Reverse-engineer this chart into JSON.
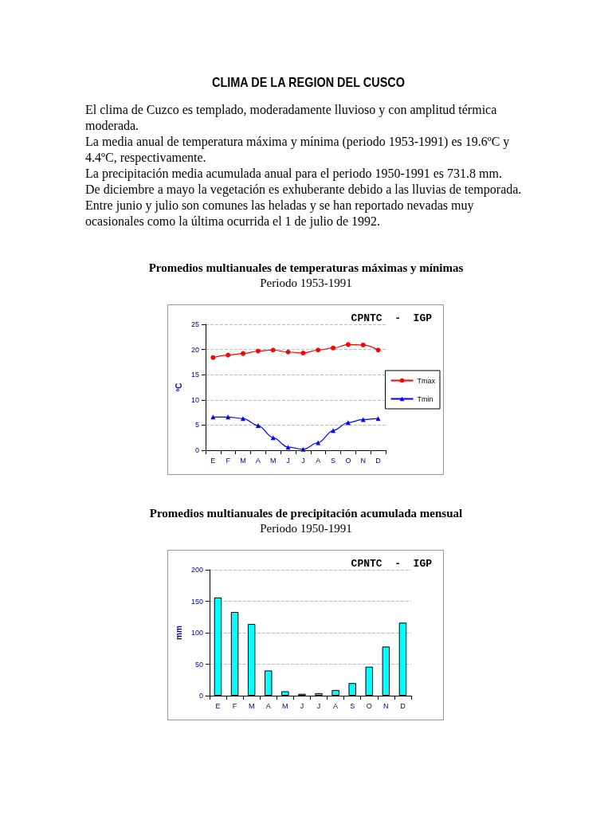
{
  "chart_data": [
    {
      "type": "other",
      "title": "CLIMA DE LA REGION DEL CUSCO",
      "annotations": [
        "El clima de Cuzco es templado, moderadamente lluvioso y con amplitud térmica moderada.",
        "La media anual de temperatura máxima y mínima (periodo 1953-1991) es 19.6ºC y 4.4ºC, respectivamente.",
        "La precipitación media acumulada anual para el periodo 1950-1991 es 731.8 mm.",
        "De diciembre a mayo la vegetación es exhuberante debido a las lluvias de temporada. Entre junio y julio son comunes las heladas y se han reportado nevadas muy ocasionales como la última ocurrida el 1 de julio de 1992."
      ]
    },
    {
      "type": "line",
      "title": "Promedios multianuales de temperaturas máximas y mínimas",
      "subtitle": "Periodo 1953-1991",
      "ylabel": "ºC",
      "annotations": [
        "CPNTC  -  IGP"
      ],
      "categories": [
        "E",
        "F",
        "M",
        "A",
        "M",
        "J",
        "J",
        "A",
        "S",
        "O",
        "N",
        "D"
      ],
      "series": [
        {
          "name": "Tmax",
          "color": "#ff0000",
          "marker": "circle",
          "values": [
            18.4,
            18.9,
            19.2,
            19.7,
            19.9,
            19.5,
            19.3,
            19.9,
            20.3,
            21.0,
            20.9,
            19.9
          ]
        },
        {
          "name": "Tmin",
          "color": "#0000ff",
          "marker": "triangle",
          "values": [
            6.6,
            6.6,
            6.3,
            4.9,
            2.5,
            0.6,
            0.2,
            1.5,
            3.9,
            5.5,
            6.1,
            6.3
          ]
        }
      ],
      "ylim": [
        0,
        25
      ],
      "yticks": [
        0,
        5,
        10,
        15,
        20,
        25
      ],
      "grid": "y",
      "legend": "right"
    },
    {
      "type": "bar",
      "title": "Promedios multianuales de precipitación acumulada mensual",
      "subtitle": "Periodo 1950-1991",
      "ylabel": "mm",
      "annotations": [
        "CPNTC  -  IGP"
      ],
      "categories": [
        "E",
        "F",
        "M",
        "A",
        "M",
        "J",
        "J",
        "A",
        "S",
        "O",
        "N",
        "D"
      ],
      "values": [
        156,
        133,
        114,
        40,
        7,
        3,
        4,
        9,
        20,
        46,
        78,
        116
      ],
      "color": "#00ffff",
      "ylim": [
        0,
        200
      ],
      "yticks": [
        0,
        50,
        100,
        150,
        200
      ],
      "grid": "y"
    }
  ]
}
